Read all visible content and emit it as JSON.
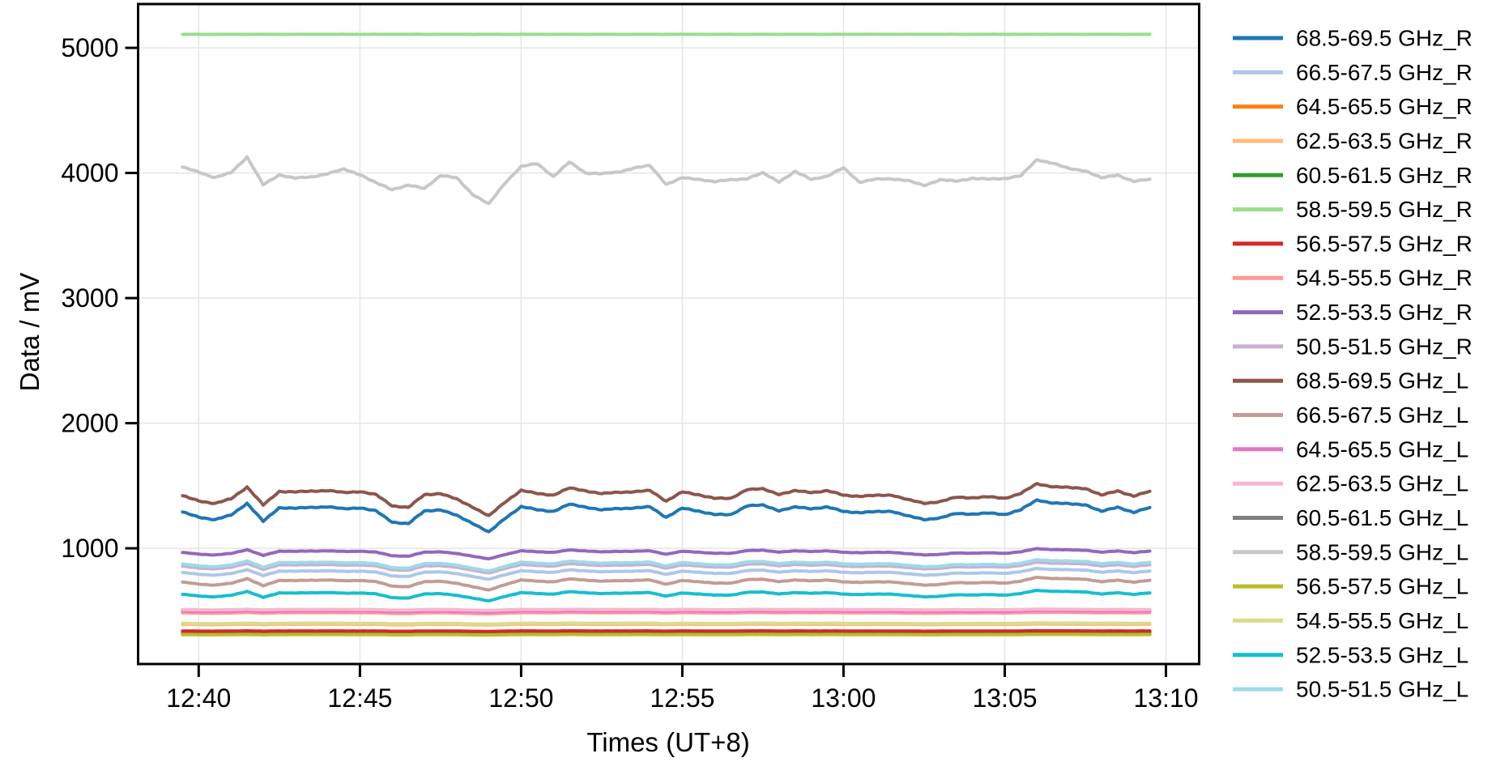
{
  "figure": {
    "background": "#ffffff",
    "xlabel": "Times (UT+8)",
    "ylabel": "Data / mV"
  },
  "chart_data": {
    "type": "line",
    "title": "",
    "xlabel": "Times (UT+8)",
    "ylabel": "Data / mV",
    "grid": true,
    "legend_position": "outside-right",
    "x_axis": {
      "tick_labels": [
        "12:40",
        "12:45",
        "12:50",
        "12:55",
        "13:00",
        "13:05",
        "13:10"
      ],
      "tick_minutes_after_1240": [
        0,
        5,
        10,
        15,
        20,
        25,
        30
      ],
      "xlim_minutes": [
        -1.88,
        31.03
      ],
      "sample_start_minute": -0.5,
      "sample_step_minute": 0.5
    },
    "y_axis": {
      "ticks": [
        1000,
        2000,
        3000,
        4000,
        5000
      ],
      "ylim": [
        75,
        5350
      ]
    },
    "value_rule": "series value[i] = base + amp * (profiles.main[i] - 1295) when shape='main'; profiles.gray[i] when shape='gray'; constant base when shape='flat'",
    "profiles": {
      "main": [
        1288,
        1250,
        1228,
        1265,
        1360,
        1215,
        1325,
        1320,
        1327,
        1332,
        1315,
        1324,
        1298,
        1210,
        1196,
        1298,
        1308,
        1262,
        1200,
        1128,
        1240,
        1332,
        1308,
        1295,
        1352,
        1330,
        1306,
        1318,
        1322,
        1331,
        1248,
        1320,
        1298,
        1270,
        1268,
        1340,
        1344,
        1302,
        1329,
        1317,
        1330,
        1294,
        1286,
        1292,
        1296,
        1258,
        1230,
        1243,
        1278,
        1274,
        1281,
        1270,
        1308,
        1386,
        1362,
        1355,
        1349,
        1294,
        1330,
        1286,
        1326
      ],
      "gray": [
        4045,
        4008,
        3962,
        4002,
        4128,
        3905,
        3985,
        3958,
        3968,
        3995,
        4030,
        3988,
        3920,
        3868,
        3902,
        3876,
        3980,
        3960,
        3828,
        3752,
        3920,
        4052,
        4074,
        3972,
        4086,
        4000,
        3994,
        4006,
        4040,
        4058,
        3910,
        3960,
        3950,
        3930,
        3946,
        3954,
        4000,
        3930,
        4010,
        3950,
        3974,
        4042,
        3926,
        3950,
        3954,
        3938,
        3900,
        3946,
        3934,
        3958,
        3950,
        3956,
        3978,
        4106,
        4078,
        4034,
        4018,
        3960,
        3984,
        3932,
        3950
      ]
    },
    "series": [
      {
        "label": "68.5-69.5 GHz_R",
        "color": "#1f77b4",
        "shape": "main",
        "base": 1295,
        "amp": 1.0
      },
      {
        "label": "66.5-67.5 GHz_R",
        "color": "#aec7e8",
        "shape": "main",
        "base": 808,
        "amp": 0.34
      },
      {
        "label": "64.5-65.5 GHz_R",
        "color": "#ff7f0e",
        "shape": "main",
        "base": 331,
        "amp": 0.02
      },
      {
        "label": "62.5-63.5 GHz_R",
        "color": "#ffbb78",
        "shape": "main",
        "base": 391,
        "amp": 0.03
      },
      {
        "label": "60.5-61.5 GHz_R",
        "color": "#2ca02c",
        "shape": "main",
        "base": 324,
        "amp": 0.015
      },
      {
        "label": "58.5-59.5 GHz_R",
        "color": "#98df8a",
        "shape": "flat",
        "base": 5108,
        "amp": 0
      },
      {
        "label": "56.5-57.5 GHz_R",
        "color": "#d62728",
        "shape": "main",
        "base": 339,
        "amp": 0.02
      },
      {
        "label": "54.5-55.5 GHz_R",
        "color": "#ff9896",
        "shape": "main",
        "base": 484,
        "amp": 0.05
      },
      {
        "label": "52.5-53.5 GHz_R",
        "color": "#9467bd",
        "shape": "main",
        "base": 968,
        "amp": 0.32
      },
      {
        "label": "50.5-51.5 GHz_R",
        "color": "#c5b0d5",
        "shape": "main",
        "base": 858,
        "amp": 0.34
      },
      {
        "label": "68.5-69.5 GHz_L",
        "color": "#8c564b",
        "shape": "main",
        "base": 1425,
        "amp": 1.0
      },
      {
        "label": "66.5-67.5 GHz_L",
        "color": "#c49c94",
        "shape": "main",
        "base": 732,
        "amp": 0.4
      },
      {
        "label": "64.5-65.5 GHz_L",
        "color": "#e377c2",
        "shape": "main",
        "base": 499,
        "amp": 0.05
      },
      {
        "label": "62.5-63.5 GHz_L",
        "color": "#f7b6d2",
        "shape": "main",
        "base": 510,
        "amp": 0.04
      },
      {
        "label": "60.5-61.5 GHz_L",
        "color": "#7f7f7f",
        "shape": "main",
        "base": 312,
        "amp": 0.015
      },
      {
        "label": "58.5-59.5 GHz_L",
        "color": "#c7c7c7",
        "shape": "gray",
        "base": 3975,
        "amp": 1.0
      },
      {
        "label": "56.5-57.5 GHz_L",
        "color": "#bcbd22",
        "shape": "main",
        "base": 310,
        "amp": 0.02
      },
      {
        "label": "54.5-55.5 GHz_L",
        "color": "#dbdb8d",
        "shape": "main",
        "base": 400,
        "amp": 0.04
      },
      {
        "label": "52.5-53.5 GHz_L",
        "color": "#17becf",
        "shape": "main",
        "base": 634,
        "amp": 0.33
      },
      {
        "label": "50.5-51.5 GHz_L",
        "color": "#9edae5",
        "shape": "main",
        "base": 876,
        "amp": 0.36
      }
    ]
  }
}
